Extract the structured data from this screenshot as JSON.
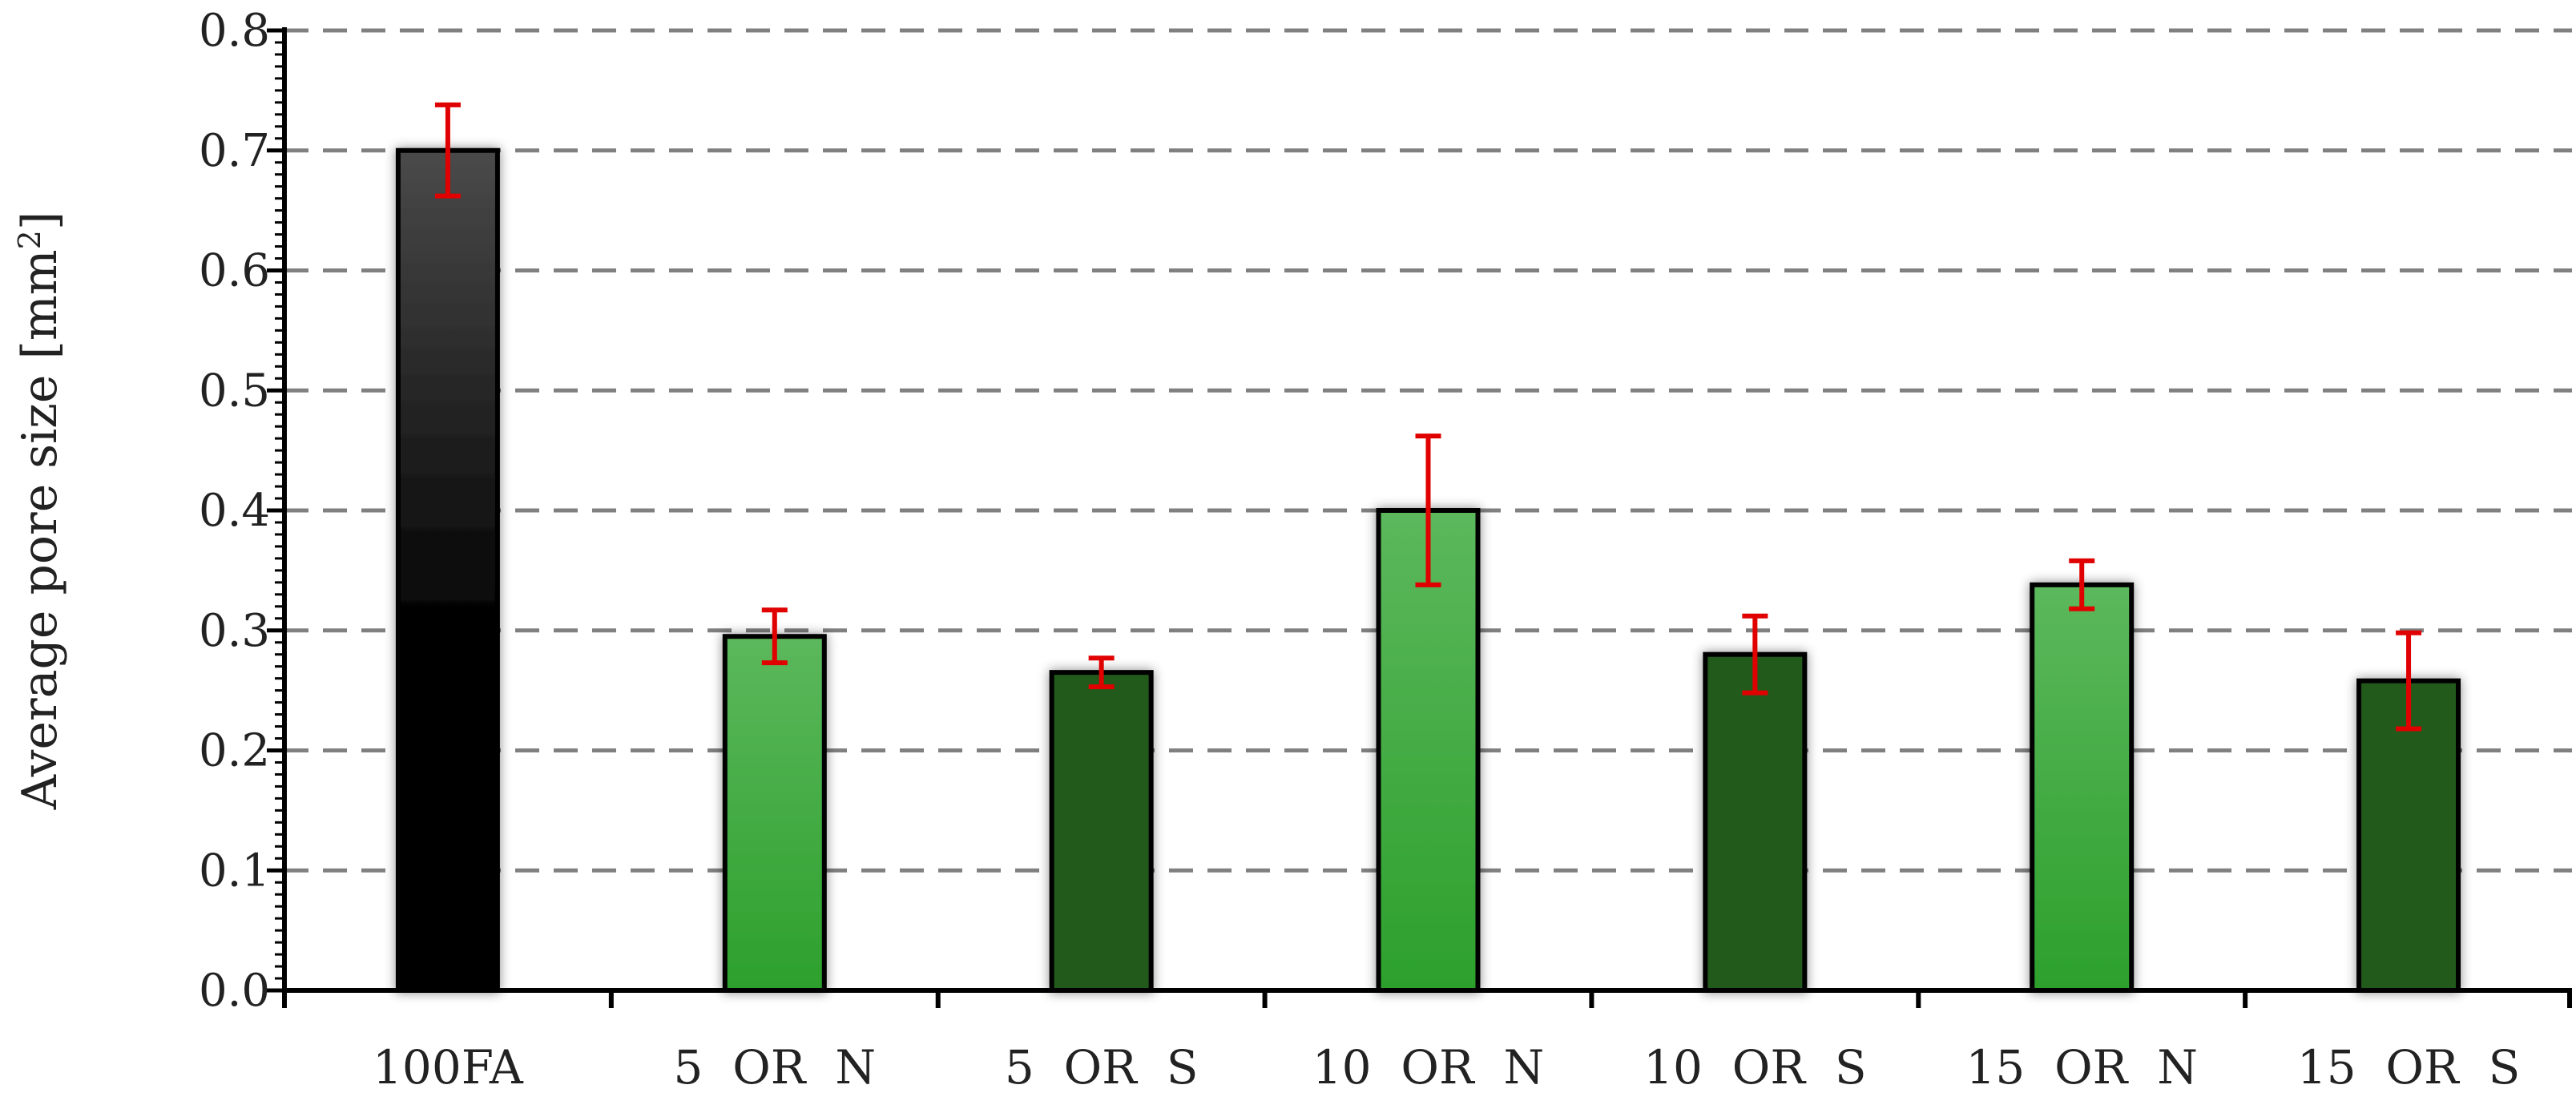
{
  "chart_data": {
    "type": "bar",
    "title": "",
    "xlabel": "",
    "ylabel": "Average pore size [mm",
    "ylabel_sup": "2",
    "ylabel_suffix": "]",
    "ylim": [
      0,
      0.8
    ],
    "yticks": [
      "0.0",
      "0.1",
      "0.2",
      "0.3",
      "0.4",
      "0.5",
      "0.6",
      "0.7",
      "0.8"
    ],
    "grid": "horizontal dashed",
    "categories": [
      "100FA",
      "5  OR  N",
      "5  OR  S",
      "10  OR  N",
      "10  OR  S",
      "15  OR  N",
      "15  OR  S"
    ],
    "values": [
      0.7,
      0.295,
      0.265,
      0.4,
      0.28,
      0.338,
      0.258
    ],
    "error": [
      0.038,
      0.022,
      0.012,
      0.062,
      0.032,
      0.02,
      0.04
    ],
    "bar_styles": [
      "black",
      "light-green",
      "dark-green",
      "light-green",
      "dark-green",
      "light-green",
      "dark-green"
    ],
    "colors": {
      "black_top": "#4a4a4a",
      "black_bottom": "#000000",
      "light_green_top": "#5cb85c",
      "light_green_bottom": "#2ca02c",
      "dark_green": "#215a1e",
      "error_bar": "#e00000",
      "grid": "#808080",
      "axis": "#000000"
    }
  }
}
